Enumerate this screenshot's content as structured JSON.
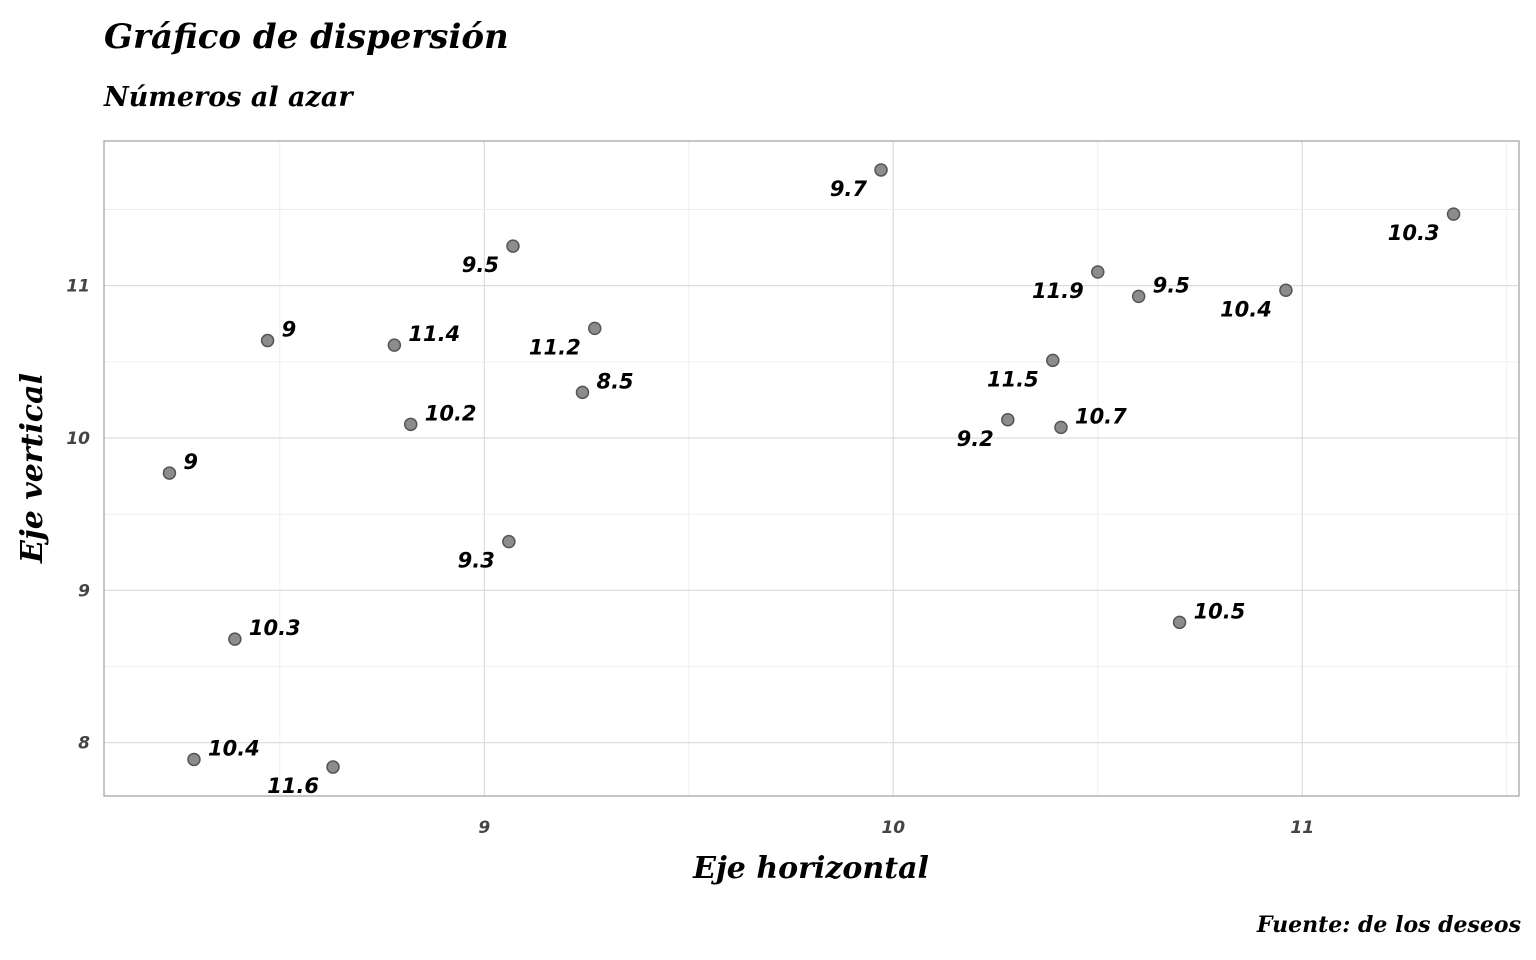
{
  "chart_data": {
    "type": "scatter",
    "title": "Gráfico de dispersión",
    "subtitle": "Números al azar",
    "xlabel": "Eje horizontal",
    "ylabel": "Eje vertical",
    "caption": "Fuente: de los deseos",
    "xlim": [
      8.07,
      11.53
    ],
    "ylim": [
      7.65,
      11.95
    ],
    "x_ticks": [
      9,
      10,
      11
    ],
    "y_ticks": [
      8,
      9,
      10,
      11
    ],
    "grid": true,
    "point_color": "#8c8c8c",
    "points": [
      {
        "x": 8.23,
        "y": 9.77,
        "label": "9",
        "label_pos": "right"
      },
      {
        "x": 8.29,
        "y": 7.89,
        "label": "10.4",
        "label_pos": "right"
      },
      {
        "x": 8.39,
        "y": 8.68,
        "label": "10.3",
        "label_pos": "right"
      },
      {
        "x": 8.47,
        "y": 10.64,
        "label": "9",
        "label_pos": "right"
      },
      {
        "x": 8.63,
        "y": 7.84,
        "label": "11.6",
        "label_pos": "left"
      },
      {
        "x": 8.78,
        "y": 10.61,
        "label": "11.4",
        "label_pos": "right"
      },
      {
        "x": 8.82,
        "y": 10.09,
        "label": "10.2",
        "label_pos": "right"
      },
      {
        "x": 9.06,
        "y": 9.32,
        "label": "9.3",
        "label_pos": "left"
      },
      {
        "x": 9.07,
        "y": 11.26,
        "label": "9.5",
        "label_pos": "left"
      },
      {
        "x": 9.24,
        "y": 10.3,
        "label": "8.5",
        "label_pos": "right"
      },
      {
        "x": 9.27,
        "y": 10.72,
        "label": "11.2",
        "label_pos": "left"
      },
      {
        "x": 9.97,
        "y": 11.76,
        "label": "9.7",
        "label_pos": "left"
      },
      {
        "x": 10.28,
        "y": 10.12,
        "label": "9.2",
        "label_pos": "left"
      },
      {
        "x": 10.39,
        "y": 10.51,
        "label": "11.5",
        "label_pos": "left"
      },
      {
        "x": 10.41,
        "y": 10.07,
        "label": "10.7",
        "label_pos": "right"
      },
      {
        "x": 10.5,
        "y": 11.09,
        "label": "11.9",
        "label_pos": "left"
      },
      {
        "x": 10.6,
        "y": 10.93,
        "label": "9.5",
        "label_pos": "right"
      },
      {
        "x": 10.7,
        "y": 8.79,
        "label": "10.5",
        "label_pos": "right"
      },
      {
        "x": 10.96,
        "y": 10.97,
        "label": "10.4",
        "label_pos": "left"
      },
      {
        "x": 11.37,
        "y": 11.47,
        "label": "10.3",
        "label_pos": "left"
      }
    ]
  }
}
